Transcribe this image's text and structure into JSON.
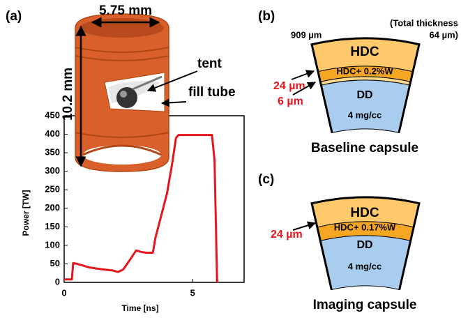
{
  "labels": [
    "(a)",
    "(b)",
    "(c)"
  ],
  "chart_data": {
    "type": "line",
    "x": [
      0,
      0.3,
      0.35,
      0.5,
      1.0,
      1.5,
      1.9,
      2.1,
      2.3,
      2.55,
      2.8,
      3.0,
      3.2,
      3.45,
      3.55,
      3.7,
      4.0,
      4.2,
      4.35,
      4.45,
      5.75,
      5.85,
      5.95
    ],
    "values": [
      8,
      8,
      52,
      50,
      40,
      35,
      32,
      28,
      35,
      60,
      86,
      82,
      80,
      80,
      120,
      160,
      240,
      320,
      390,
      398,
      398,
      330,
      0
    ],
    "color": "#e8141b",
    "xlabel": "Time [ns]",
    "ylabel": "Power [TW]",
    "xlim": [
      0,
      7
    ],
    "xticks": [
      0,
      5
    ],
    "ylim": [
      0,
      450
    ],
    "yticks": [
      0,
      50,
      100,
      150,
      200,
      250,
      300,
      350,
      400,
      450
    ]
  },
  "hohlraum": {
    "width": "5.75 mm",
    "height": "10.2 mm",
    "tent": "tent",
    "fill_tube": "fill tube"
  },
  "baseline": {
    "outer": "909 µm",
    "total_1": "(Total thickness",
    "total_2": "64 µm)",
    "ablator": "HDC",
    "doped": "HDC+ 0.2%W",
    "fuel": "DD",
    "density": "4 mg/cc",
    "dims": [
      "24 µm",
      "6 µm"
    ],
    "title": "Baseline capsule"
  },
  "imaging": {
    "ablator": "HDC",
    "doped": "HDC+ 0.17%W",
    "fuel": "DD",
    "density": "4 mg/cc",
    "dims": [
      "24 µm"
    ],
    "title": "Imaging capsule"
  }
}
